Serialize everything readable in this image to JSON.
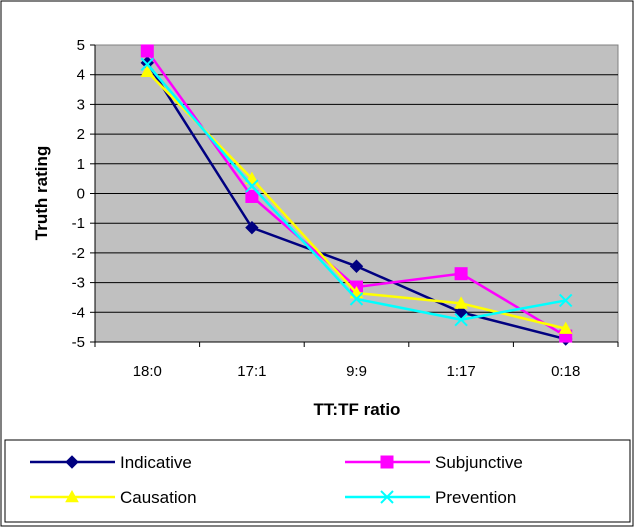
{
  "chart_data": {
    "type": "line",
    "title": "",
    "xlabel": "TT:TF ratio",
    "ylabel": "Truth rating",
    "categories": [
      "18:0",
      "17:1",
      "9:9",
      "1:17",
      "0:18"
    ],
    "ylim": [
      -5,
      5
    ],
    "yticks": [
      "5",
      "4",
      "3",
      "2",
      "1",
      "0",
      "-1",
      "-2",
      "-3",
      "-4",
      "-5"
    ],
    "grid": true,
    "plot_background": "#c0c0c0",
    "legend_position": "bottom",
    "series": [
      {
        "name": "Indicative",
        "values": [
          4.4,
          -1.15,
          -2.45,
          -4.0,
          -4.9
        ],
        "color": "#000080",
        "marker": "diamond"
      },
      {
        "name": "Subjunctive",
        "values": [
          4.8,
          -0.1,
          -3.15,
          -2.7,
          -4.8
        ],
        "color": "#ff00ff",
        "marker": "square"
      },
      {
        "name": "Causation",
        "values": [
          4.1,
          0.5,
          -3.35,
          -3.7,
          -4.55
        ],
        "color": "#ffff00",
        "marker": "triangle"
      },
      {
        "name": "Prevention",
        "values": [
          4.35,
          0.25,
          -3.55,
          -4.25,
          -3.6
        ],
        "color": "#00ffff",
        "marker": "x"
      }
    ]
  }
}
